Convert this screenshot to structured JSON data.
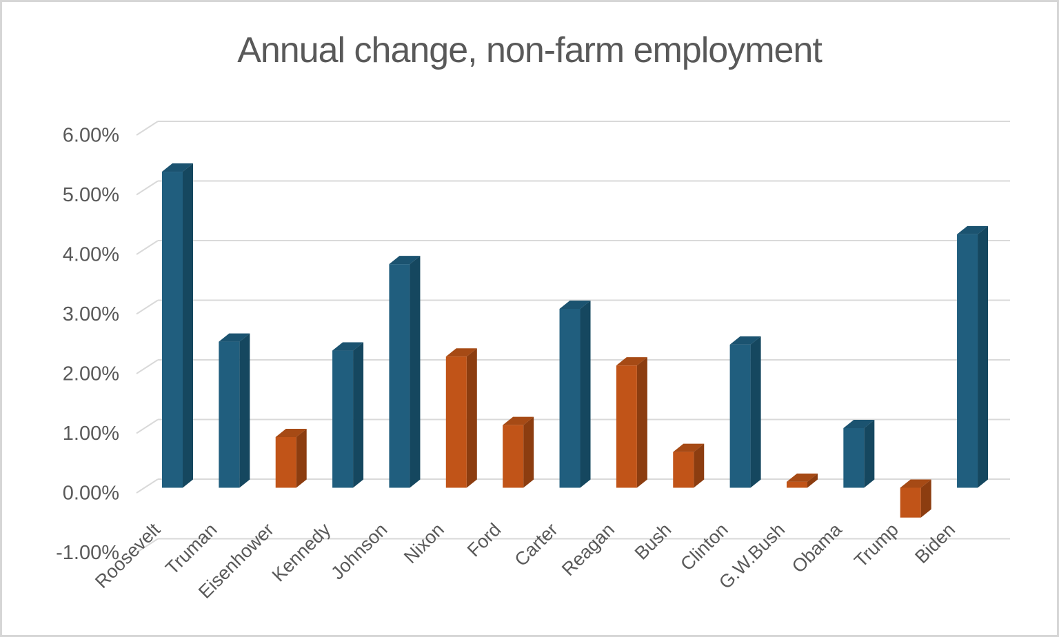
{
  "chart_data": {
    "type": "bar",
    "style": "3d",
    "title": "Annual change, non-farm employment",
    "xlabel": "",
    "ylabel": "",
    "unit": "percent",
    "categories": [
      "Roosevelt",
      "Truman",
      "Eisenhower",
      "Kennedy",
      "Johnson",
      "Nixon",
      "Ford",
      "Carter",
      "Reagan",
      "Bush",
      "Clinton",
      "G.W.Bush",
      "Obama",
      "Trump",
      "Biden"
    ],
    "values": [
      5.3,
      2.45,
      0.85,
      2.3,
      3.75,
      2.2,
      1.05,
      3.0,
      2.05,
      0.6,
      2.4,
      0.1,
      1.0,
      -0.5,
      4.25
    ],
    "parties": [
      "D",
      "D",
      "R",
      "D",
      "D",
      "R",
      "R",
      "D",
      "R",
      "R",
      "D",
      "R",
      "D",
      "R",
      "D"
    ],
    "ylim": [
      -1,
      6
    ],
    "ytick_step": 1,
    "ytick_labels": [
      "6.00%",
      "5.00%",
      "4.00%",
      "3.00%",
      "2.00%",
      "1.00%",
      "0.00%",
      "-1.00%"
    ],
    "xtick_rotation": 45,
    "grid": true,
    "legend": false,
    "colors": {
      "D": {
        "front": "#205E7E",
        "top": "#1B5370",
        "side": "#15475F"
      },
      "R": {
        "front": "#C15418",
        "top": "#A64A15",
        "side": "#8C3D10"
      }
    },
    "text_color": "#595959",
    "grid_color": "#D9D9D9",
    "background": "#FFFFFF",
    "frame_border_color": "#D6D6D6"
  }
}
